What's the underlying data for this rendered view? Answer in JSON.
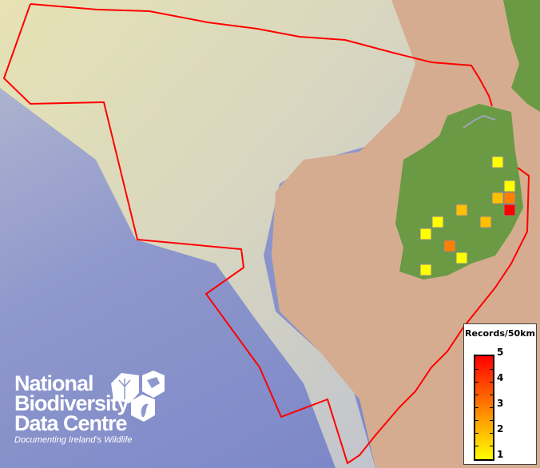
{
  "legend": {
    "title": "Records/50km",
    "labels": [
      "5",
      "4",
      "3",
      "2",
      "1"
    ],
    "scale_min": 1,
    "scale_max": 5,
    "colors": {
      "low": "#ffff00",
      "mid": "#ff8000",
      "high": "#ff0000"
    }
  },
  "records": [
    {
      "cell": "A",
      "value": 1
    },
    {
      "cell": "B",
      "value": 1
    },
    {
      "cell": "C",
      "value": 2
    },
    {
      "cell": "D",
      "value": 3
    },
    {
      "cell": "E",
      "value": 5
    },
    {
      "cell": "F",
      "value": 2
    },
    {
      "cell": "G",
      "value": 2
    },
    {
      "cell": "H",
      "value": 1
    },
    {
      "cell": "I",
      "value": 1
    },
    {
      "cell": "J",
      "value": 3
    },
    {
      "cell": "K",
      "value": 1
    },
    {
      "cell": "L",
      "value": 1
    }
  ],
  "boundary_color": "#ff0000",
  "logo": {
    "name_lines": [
      "National",
      "Biodiversity",
      "Data Centre"
    ],
    "tagline": "Documenting Ireland's Wildlife"
  }
}
